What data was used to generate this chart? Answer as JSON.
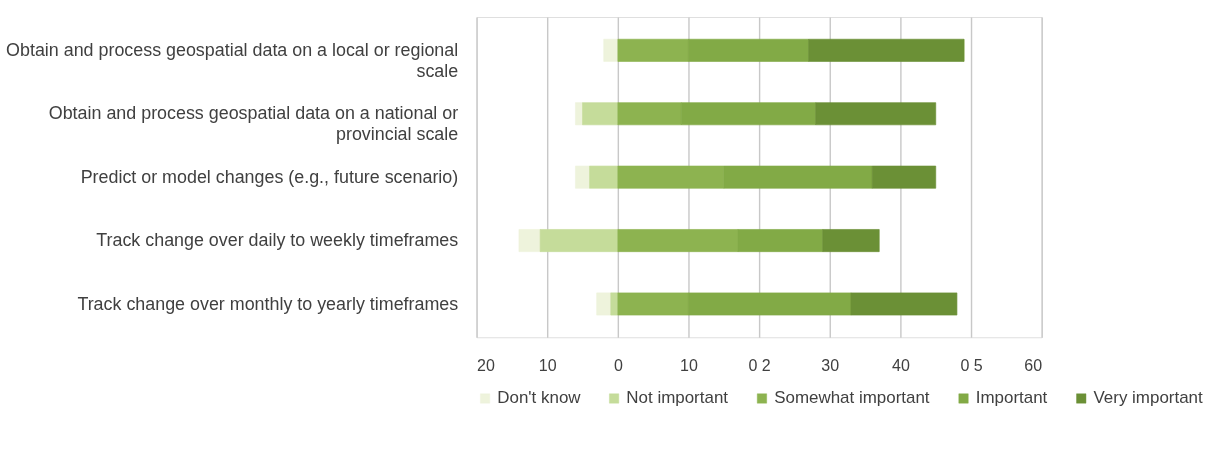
{
  "chart_data": {
    "type": "bar",
    "orientation": "horizontal",
    "stacked": true,
    "categories": [
      "Obtain and process geospatial data on a local or regional scale",
      "Obtain and process geospatial data on a national or provincial scale",
      "Predict or model changes (e.g., future scenario)",
      "Track change over daily to weekly timeframes",
      "Track change over monthly to yearly timeframes"
    ],
    "series": [
      {
        "name": "Don't know",
        "color": "#eef3dc",
        "values": [
          -2,
          -1,
          -2,
          -3,
          -2
        ]
      },
      {
        "name": "Not important",
        "color": "#c5dc9a",
        "values": [
          0,
          -5,
          -4,
          -11,
          -1
        ]
      },
      {
        "name": "Somewhat important",
        "color": "#8db350",
        "values": [
          10,
          9,
          15,
          17,
          10
        ]
      },
      {
        "name": "Important",
        "color": "#82aa46",
        "values": [
          17,
          19,
          21,
          12,
          23
        ]
      },
      {
        "name": "Very important",
        "color": "#6b9036",
        "values": [
          22,
          17,
          9,
          8,
          15
        ]
      }
    ],
    "xlim": [
      -20,
      60
    ],
    "xticks": [
      {
        "value": -20,
        "label": "20"
      },
      {
        "value": -10,
        "label": "10"
      },
      0,
      10,
      {
        "value": 20,
        "label": "0 2"
      },
      30,
      40,
      {
        "value": 50,
        "label": "0 5"
      },
      60
    ],
    "grid": "x",
    "legend": "bottom"
  }
}
